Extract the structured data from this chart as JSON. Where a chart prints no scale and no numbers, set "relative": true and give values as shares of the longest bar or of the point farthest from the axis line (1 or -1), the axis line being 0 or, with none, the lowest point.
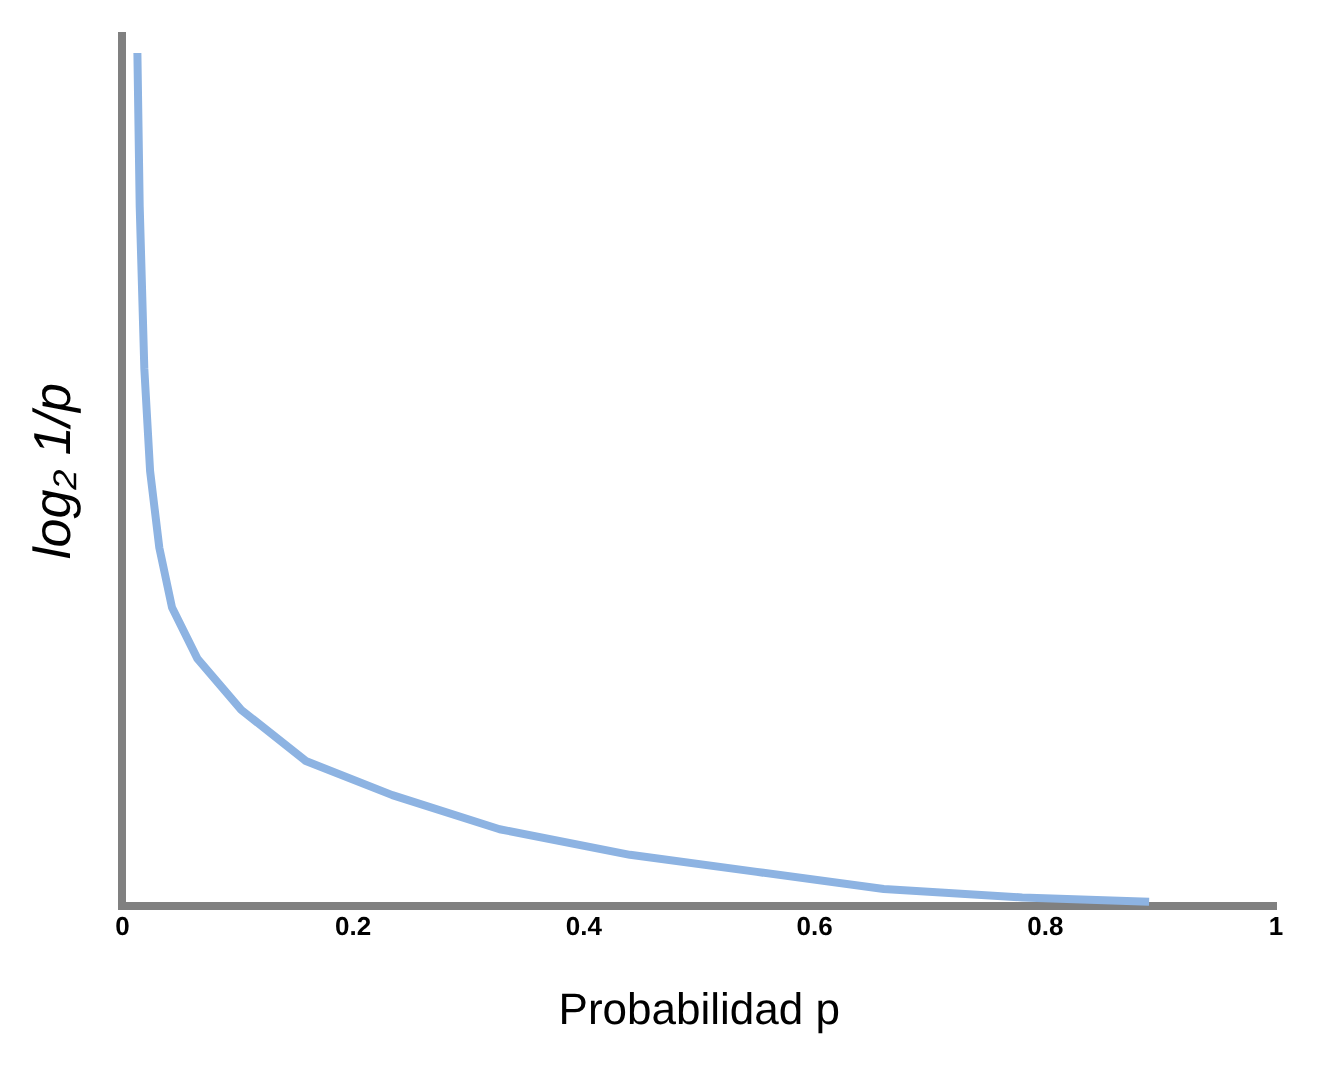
{
  "chart_data": {
    "type": "line",
    "xlabel": "Probabilidad p",
    "ylabel": "log₂ 1/p",
    "relative": true,
    "xlim": [
      0,
      1
    ],
    "xticks": [
      0,
      0.2,
      0.4,
      0.6,
      0.8,
      1
    ],
    "grid": false,
    "legend": false,
    "marker": "none",
    "line_style": "solid",
    "series": [
      {
        "color": "#8db3e2",
        "x": [
          0.013,
          0.015,
          0.019,
          0.024,
          0.032,
          0.043,
          0.065,
          0.103,
          0.159,
          0.234,
          0.327,
          0.44,
          0.55,
          0.66,
          0.78,
          0.89
        ],
        "values": [
          1,
          0.82,
          0.63,
          0.51,
          0.42,
          0.35,
          0.29,
          0.23,
          0.17,
          0.13,
          0.09,
          0.06,
          0.04,
          0.02,
          0.01,
          0.005
        ]
      }
    ]
  }
}
